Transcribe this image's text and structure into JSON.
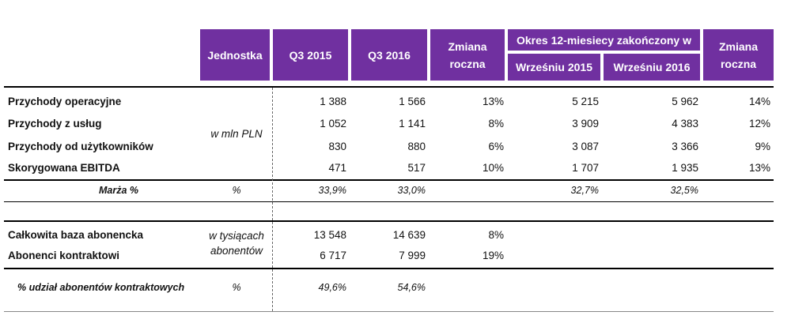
{
  "header": {
    "unit": "Jednostka",
    "q3_2015": "Q3 2015",
    "q3_2016": "Q3 2016",
    "yoy1_line1": "Zmiana",
    "yoy1_line2": "roczna",
    "period_group": "Okres 12-miesiecy zakończony w",
    "sep_2015": "Wrześniu 2015",
    "sep_2016": "Wrześniu 2016",
    "yoy2_line1": "Zmiana",
    "yoy2_line2": "roczna"
  },
  "section1": {
    "unit_label": "w mln PLN",
    "rows": [
      {
        "label": "Przychody operacyjne",
        "q3_2015": "1 388",
        "q3_2016": "1 566",
        "yoy": "13%",
        "m12_2015": "5 215",
        "m12_2016": "5 962",
        "yoy12": "14%"
      },
      {
        "label": "Przychody z usług",
        "q3_2015": "1 052",
        "q3_2016": "1 141",
        "yoy": "8%",
        "m12_2015": "3 909",
        "m12_2016": "4 383",
        "yoy12": "12%"
      },
      {
        "label": "Przychody od użytkowników",
        "q3_2015": "830",
        "q3_2016": "880",
        "yoy": "6%",
        "m12_2015": "3 087",
        "m12_2016": "3 366",
        "yoy12": "9%"
      },
      {
        "label": "Skorygowana EBITDA",
        "q3_2015": "471",
        "q3_2016": "517",
        "yoy": "10%",
        "m12_2015": "1 707",
        "m12_2016": "1 935",
        "yoy12": "13%"
      }
    ],
    "margin": {
      "label": "Marża %",
      "unit": "%",
      "q3_2015": "33,9%",
      "q3_2016": "33,0%",
      "m12_2015": "32,7%",
      "m12_2016": "32,5%"
    }
  },
  "section2": {
    "unit_line1": "w tysiącach",
    "unit_line2": "abonentów",
    "rows": [
      {
        "label": "Całkowita baza abonencka",
        "q3_2015": "13 548",
        "q3_2016": "14 639",
        "yoy": "8%"
      },
      {
        "label": "Abonenci kontraktowi",
        "q3_2015": "6 717",
        "q3_2016": "7 999",
        "yoy": "19%"
      }
    ],
    "share": {
      "label": "% udział abonentów kontraktowych",
      "unit": "%",
      "q3_2015": "49,6%",
      "q3_2016": "54,6%"
    }
  }
}
